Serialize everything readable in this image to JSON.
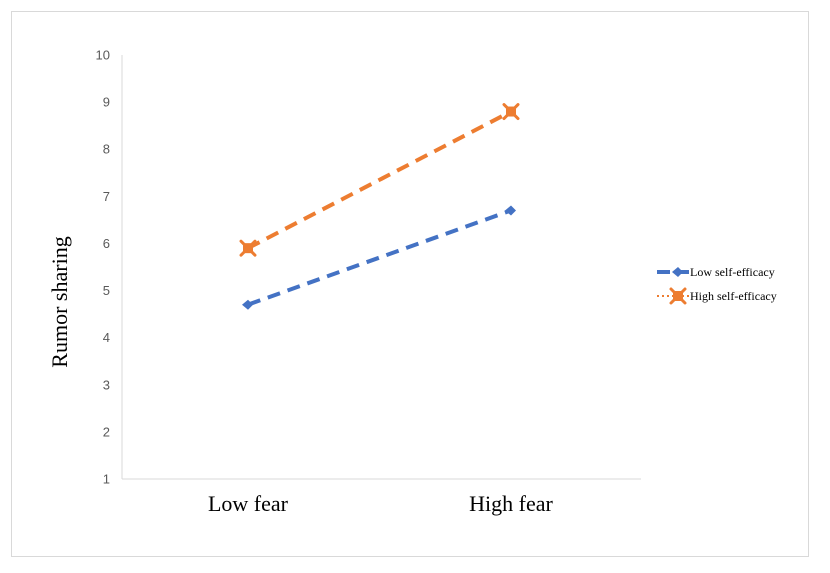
{
  "chart_data": {
    "type": "line",
    "title": "",
    "xlabel": "",
    "ylabel": "Rumor sharing",
    "categories": [
      "Low fear",
      "High fear"
    ],
    "ylim": [
      1,
      10
    ],
    "yticks": [
      "1",
      "2",
      "3",
      "4",
      "5",
      "6",
      "7",
      "8",
      "9",
      "10"
    ],
    "grid": false,
    "legend_position": "right",
    "series": [
      {
        "name": "Low self-efficacy",
        "values": [
          4.7,
          6.7
        ],
        "color": "#4472C4",
        "marker": "diamond",
        "line_style": "dashed"
      },
      {
        "name": "High self-efficacy",
        "values": [
          5.9,
          8.8
        ],
        "color": "#ED7D31",
        "marker": "x-square",
        "line_style": "dashed"
      }
    ]
  }
}
